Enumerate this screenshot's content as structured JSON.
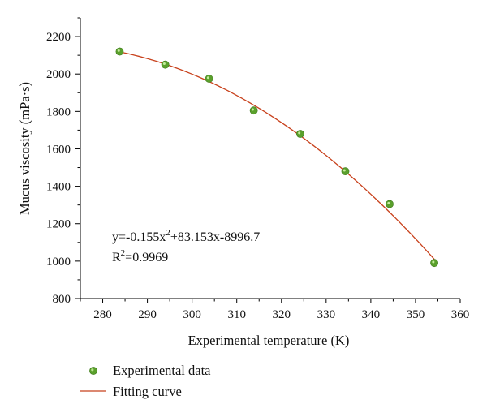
{
  "chart_data": {
    "type": "scatter",
    "xlabel": "Experimental temperature (K)",
    "ylabel": "Mucus viscosity (mPa·s)",
    "xlim": [
      275,
      360
    ],
    "ylim": [
      800,
      2300
    ],
    "x_ticks": [
      280,
      290,
      300,
      310,
      320,
      330,
      340,
      350,
      360
    ],
    "y_ticks": [
      800,
      1000,
      1200,
      1400,
      1600,
      1800,
      2000,
      2200
    ],
    "grid": false,
    "legend_position": "bottom-left",
    "series": [
      {
        "name": "Experimental data",
        "kind": "scatter",
        "color": "#5aa02c",
        "x": [
          283.8,
          294.0,
          303.8,
          313.8,
          324.2,
          334.3,
          344.2,
          354.2
        ],
        "y": [
          2120,
          2050,
          1975,
          1805,
          1680,
          1480,
          1305,
          990
        ]
      },
      {
        "name": "Fitting curve",
        "kind": "line",
        "color": "#c8411c",
        "equation": {
          "a": -0.155,
          "b": 83.153,
          "c": -8996.7
        },
        "x_range": [
          283.8,
          354.2
        ]
      }
    ],
    "annotation": {
      "equation_prefix": "y=-0.155x",
      "equation_exp": "2",
      "equation_suffix": "+83.153x-8996.7",
      "r2_prefix": "R",
      "r2_exp": "2",
      "r2_suffix": "=0.9969"
    }
  }
}
